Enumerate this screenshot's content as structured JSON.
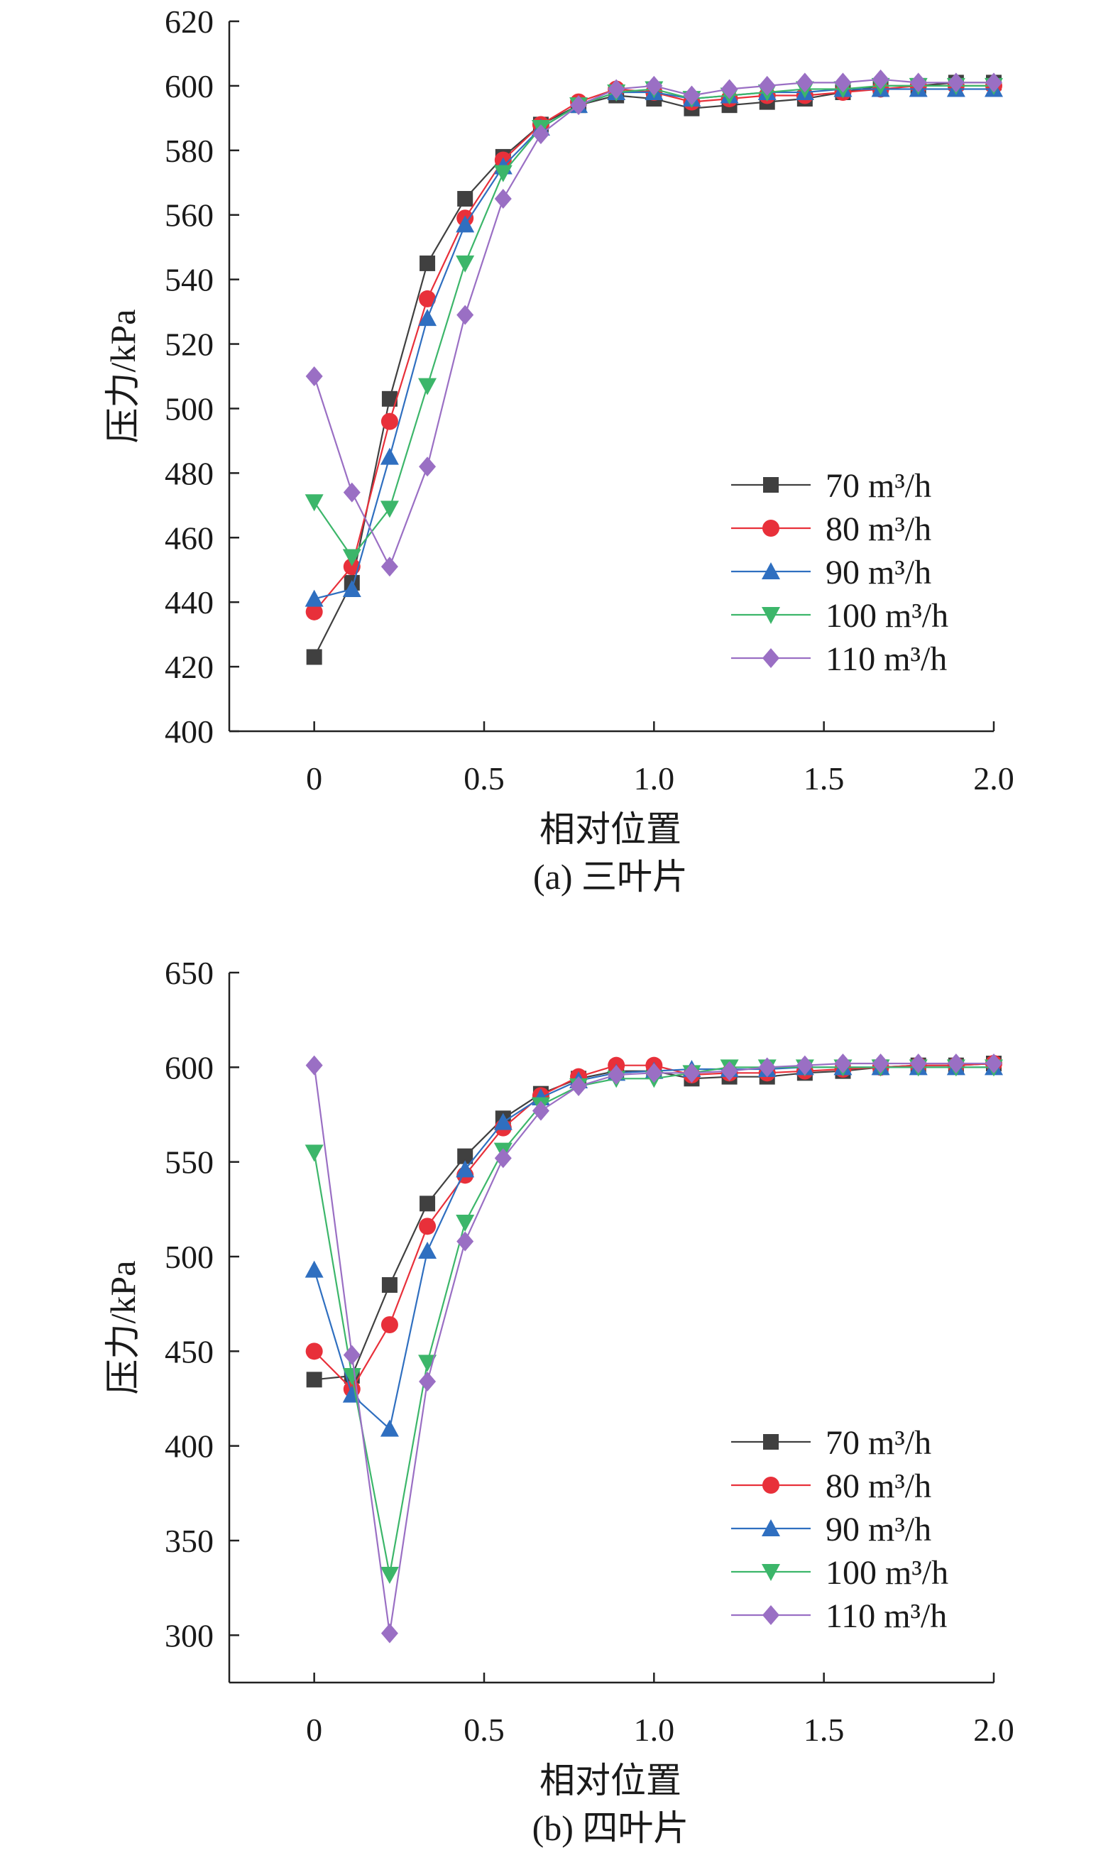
{
  "chart_data": [
    {
      "type": "line",
      "caption": "(a) 三叶片",
      "xlabel": "相对位置",
      "ylabel": "压力/kPa",
      "xlim": [
        -0.25,
        2.0
      ],
      "ylim": [
        400,
        620
      ],
      "xticks": [
        0,
        0.5,
        1.0,
        1.5,
        2.0
      ],
      "xtick_labels": [
        "0",
        "0.5",
        "1.0",
        "1.5",
        "2.0"
      ],
      "yticks": [
        400,
        420,
        440,
        460,
        480,
        500,
        520,
        540,
        560,
        580,
        600,
        620
      ],
      "ytick_labels": [
        "400",
        "420",
        "440",
        "460",
        "480",
        "500",
        "520",
        "540",
        "560",
        "580",
        "600",
        "620"
      ],
      "legend_position": "lower-right",
      "x": [
        0,
        0.111,
        0.222,
        0.333,
        0.444,
        0.556,
        0.667,
        0.778,
        0.889,
        1.0,
        1.111,
        1.222,
        1.333,
        1.444,
        1.556,
        1.667,
        1.778,
        1.889,
        2.0
      ],
      "series": [
        {
          "name": "70 m³/h",
          "color": "#404040",
          "marker": "square",
          "values": [
            423,
            446,
            503,
            545,
            565,
            578,
            588,
            594,
            597,
            596,
            593,
            594,
            595,
            596,
            598,
            600,
            600,
            601,
            601
          ]
        },
        {
          "name": "80 m³/h",
          "color": "#e8303a",
          "marker": "circle",
          "values": [
            437,
            451,
            496,
            534,
            559,
            577,
            588,
            595,
            599,
            598,
            595,
            596,
            597,
            597,
            598,
            599,
            600,
            600,
            600
          ]
        },
        {
          "name": "90 m³/h",
          "color": "#2f6fc0",
          "marker": "triangle-up",
          "values": [
            441,
            444,
            485,
            528,
            557,
            575,
            587,
            594,
            598,
            598,
            596,
            597,
            598,
            598,
            599,
            599,
            599,
            599,
            599
          ]
        },
        {
          "name": "100 m³/h",
          "color": "#3cb66a",
          "marker": "triangle-down",
          "values": [
            471,
            454,
            469,
            507,
            545,
            573,
            587,
            594,
            598,
            599,
            596,
            597,
            598,
            599,
            599,
            600,
            600,
            600,
            600
          ]
        },
        {
          "name": "110 m³/h",
          "color": "#9a6fc4",
          "marker": "diamond",
          "values": [
            510,
            474,
            451,
            482,
            529,
            565,
            585,
            594,
            599,
            600,
            597,
            599,
            600,
            601,
            601,
            602,
            601,
            601,
            601
          ]
        }
      ]
    },
    {
      "type": "line",
      "caption": "(b) 四叶片",
      "xlabel": "相对位置",
      "ylabel": "压力/kPa",
      "xlim": [
        -0.25,
        2.0
      ],
      "ylim": [
        275,
        650
      ],
      "xticks": [
        0,
        0.5,
        1.0,
        1.5,
        2.0
      ],
      "xtick_labels": [
        "0",
        "0.5",
        "1.0",
        "1.5",
        "2.0"
      ],
      "yticks": [
        300,
        350,
        400,
        450,
        500,
        550,
        600,
        650
      ],
      "ytick_labels": [
        "300",
        "350",
        "400",
        "450",
        "500",
        "550",
        "600",
        "650"
      ],
      "legend_position": "lower-right",
      "x": [
        0,
        0.111,
        0.222,
        0.333,
        0.444,
        0.556,
        0.667,
        0.778,
        0.889,
        1.0,
        1.111,
        1.222,
        1.333,
        1.444,
        1.556,
        1.667,
        1.778,
        1.889,
        2.0
      ],
      "series": [
        {
          "name": "70 m³/h",
          "color": "#404040",
          "marker": "square",
          "values": [
            435,
            437,
            485,
            528,
            553,
            573,
            586,
            594,
            598,
            598,
            594,
            595,
            595,
            597,
            598,
            600,
            601,
            601,
            602
          ]
        },
        {
          "name": "80 m³/h",
          "color": "#e8303a",
          "marker": "circle",
          "values": [
            450,
            430,
            464,
            516,
            543,
            568,
            585,
            595,
            601,
            601,
            596,
            597,
            597,
            598,
            599,
            600,
            601,
            601,
            602
          ]
        },
        {
          "name": "90 m³/h",
          "color": "#2f6fc0",
          "marker": "triangle-up",
          "values": [
            493,
            427,
            409,
            503,
            546,
            571,
            584,
            593,
            597,
            598,
            599,
            599,
            599,
            600,
            600,
            600,
            600,
            600,
            600
          ]
        },
        {
          "name": "100 m³/h",
          "color": "#3cb66a",
          "marker": "triangle-down",
          "values": [
            555,
            437,
            332,
            444,
            518,
            556,
            580,
            590,
            594,
            594,
            597,
            600,
            600,
            600,
            600,
            600,
            600,
            600,
            600
          ]
        },
        {
          "name": "110 m³/h",
          "color": "#9a6fc4",
          "marker": "diamond",
          "values": [
            601,
            448,
            301,
            434,
            508,
            552,
            577,
            590,
            596,
            597,
            597,
            598,
            600,
            601,
            602,
            602,
            602,
            602,
            602
          ]
        }
      ]
    }
  ]
}
